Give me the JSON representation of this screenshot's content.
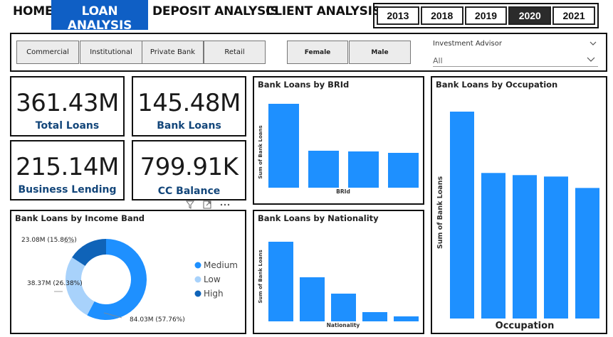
{
  "nav": {
    "home": "HOME",
    "loan": "LOAN ANALYSIS",
    "deposit": "DEPOSIT ANALYSIS",
    "client": "CLIENT ANALYSIS"
  },
  "years": [
    "2013",
    "2018",
    "2019",
    "2020",
    "2021"
  ],
  "selected_year": "2020",
  "filters": {
    "segments": [
      "Commercial",
      "Institutional",
      "Private Bank",
      "Retail"
    ],
    "genders": [
      "Female",
      "Male"
    ],
    "advisor_label": "Investment Advisor",
    "advisor_value": "All"
  },
  "kpis": {
    "total_loans": {
      "value": "361.43M",
      "label": "Total Loans"
    },
    "bank_loans": {
      "value": "145.48M",
      "label": "Bank Loans"
    },
    "business_lending": {
      "value": "215.14M",
      "label": "Business Lending"
    },
    "cc_balance": {
      "value": "799.91K",
      "label": "CC Balance"
    }
  },
  "colors": {
    "primary": "#1e90ff",
    "low": "#a8d2fb",
    "high": "#0f63b8",
    "accent": "#0f5fc5"
  },
  "toolbar_icons": [
    "filter-icon",
    "focus-mode-icon",
    "more-options-icon"
  ],
  "chart_data": [
    {
      "type": "bar",
      "title": "Bank Loans by BRId",
      "xlabel": "BRId",
      "ylabel": "Sum of Bank Loans",
      "categories": [
        "",
        "",
        "",
        ""
      ],
      "values": [
        118,
        52,
        51,
        49
      ]
    },
    {
      "type": "bar",
      "title": "Bank Loans by Nationality",
      "xlabel": "Nationality",
      "ylabel": "Sum of Bank Loans",
      "categories": [
        "",
        "",
        "",
        "",
        ""
      ],
      "values": [
        112,
        62,
        39,
        13,
        7
      ]
    },
    {
      "type": "bar",
      "title": "Bank Loans by Occupation",
      "xlabel": "Occupation",
      "ylabel": "Sum of Bank Loans",
      "categories": [
        "",
        "",
        "",
        "",
        ""
      ],
      "values": [
        290,
        204,
        201,
        199,
        183
      ]
    },
    {
      "type": "pie",
      "title": "Bank Loans by Income Band",
      "labels": [
        "Medium",
        "Low",
        "High"
      ],
      "values": [
        84.03,
        38.37,
        23.08
      ],
      "data_labels": [
        "84.03M (57.76%)",
        "38.37M (26.38%)",
        "23.08M (15.86%)"
      ],
      "legend": "right"
    }
  ]
}
